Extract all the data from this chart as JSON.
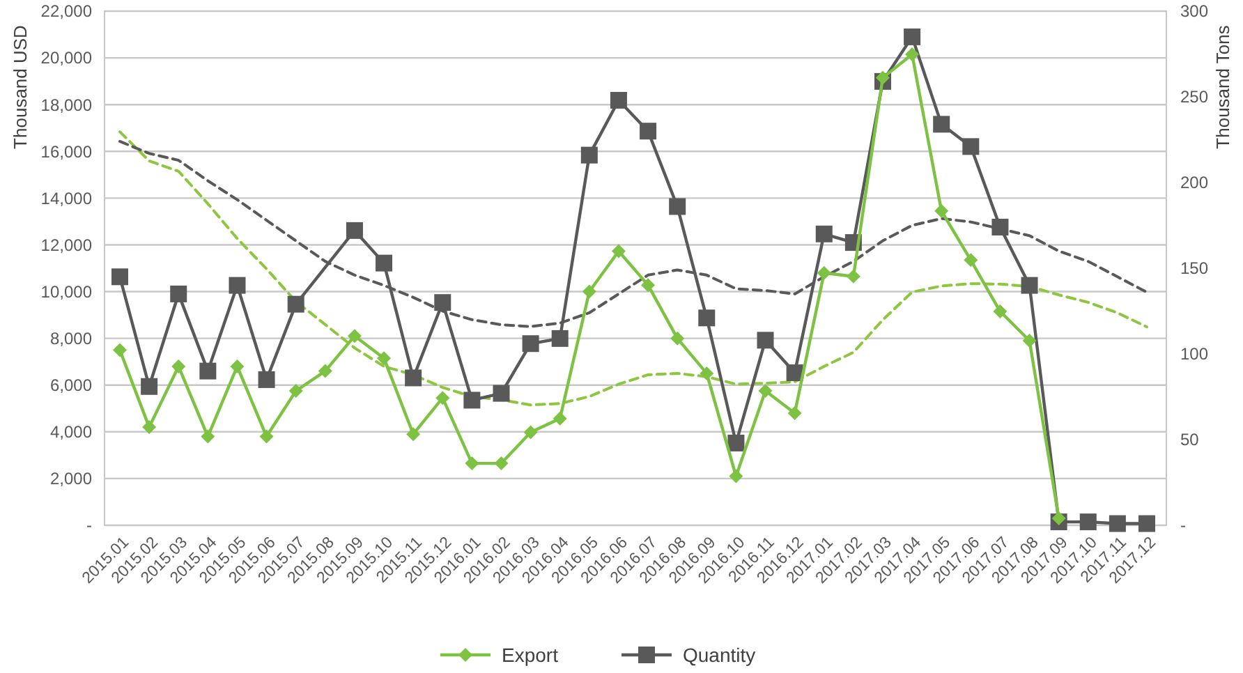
{
  "chart_data": {
    "type": "line",
    "ylabel": "Thousand USD",
    "y2label": "Thousand Tons",
    "categories": [
      "2015.01",
      "2015.02",
      "2015.03",
      "2015.04",
      "2015.05",
      "2015.06",
      "2015.07",
      "2015.08",
      "2015.09",
      "2015.10",
      "2015.11",
      "2015.12",
      "2016.01",
      "2016.02",
      "2016.03",
      "2016.04",
      "2016.05",
      "2016.06",
      "2016.07",
      "2016.08",
      "2016.09",
      "2016.10",
      "2016.11",
      "2016.12",
      "2017.01",
      "2017.02",
      "2017.03",
      "2017.04",
      "2017.05",
      "2017.06",
      "2017.07",
      "2017.08",
      "2017.09",
      "2017.10",
      "2017.11",
      "2017.12"
    ],
    "series": [
      {
        "color": "#8dc63f",
        "line_style": "dashed",
        "marker": "none",
        "values": [
          16840,
          15590,
          15150,
          13760,
          12270,
          10970,
          9580,
          8590,
          7590,
          6800,
          6440,
          5900,
          5510,
          5370,
          5150,
          5210,
          5510,
          6040,
          6440,
          6500,
          6360,
          6040,
          6080,
          6140,
          6800,
          7400,
          8790,
          9980,
          10240,
          10340,
          10320,
          10220,
          9860,
          9540,
          9090,
          8490
        ]
      },
      {
        "axis": "y2",
        "color": "#595959",
        "line_style": "dashed",
        "marker": "none",
        "values": [
          224,
          217,
          213,
          201,
          190,
          178,
          166,
          154,
          146,
          140,
          133,
          125,
          120,
          117,
          116,
          118,
          124,
          135,
          146,
          149,
          146,
          138,
          137,
          135,
          145,
          154,
          166,
          175,
          179,
          177,
          173,
          169,
          160,
          154,
          145,
          136
        ]
      },
      {
        "name": "Quantity",
        "axis": "y2",
        "color": "#595959",
        "line_style": "solid",
        "marker": "square",
        "values": [
          145,
          81,
          135,
          90,
          140,
          85,
          129,
          null,
          172,
          153,
          86,
          130,
          73,
          77,
          106,
          109,
          216,
          248,
          230,
          186,
          121,
          48,
          108,
          89,
          170,
          165,
          259,
          285,
          234,
          221,
          174,
          140,
          2,
          2,
          1,
          1
        ]
      },
      {
        "name": "Export",
        "color": "#7dc242",
        "line_style": "solid",
        "marker": "diamond",
        "values": [
          7500,
          4200,
          6800,
          3800,
          6800,
          3800,
          5750,
          6600,
          8100,
          7150,
          3900,
          5450,
          2650,
          2650,
          3980,
          4570,
          10000,
          11730,
          10280,
          8000,
          6500,
          2100,
          5750,
          4800,
          10800,
          10650,
          19150,
          20150,
          13450,
          11350,
          9150,
          7900,
          300,
          null,
          null,
          null
        ]
      }
    ],
    "ylim": [
      0,
      22000
    ],
    "yticks": [
      {
        "value": 0,
        "label": "-"
      },
      {
        "value": 2000,
        "label": "2,000"
      },
      {
        "value": 4000,
        "label": "4,000"
      },
      {
        "value": 6000,
        "label": "6,000"
      },
      {
        "value": 8000,
        "label": "8,000"
      },
      {
        "value": 10000,
        "label": "10,000"
      },
      {
        "value": 12000,
        "label": "12,000"
      },
      {
        "value": 14000,
        "label": "14,000"
      },
      {
        "value": 16000,
        "label": "16,000"
      },
      {
        "value": 18000,
        "label": "18,000"
      },
      {
        "value": 20000,
        "label": "20,000"
      },
      {
        "value": 22000,
        "label": "22,000"
      }
    ],
    "y2lim": [
      0,
      300
    ],
    "y2ticks": [
      {
        "value": 0,
        "label": "-"
      },
      50,
      100,
      150,
      200,
      250,
      300
    ],
    "grid": "y",
    "legend": "bottom"
  }
}
